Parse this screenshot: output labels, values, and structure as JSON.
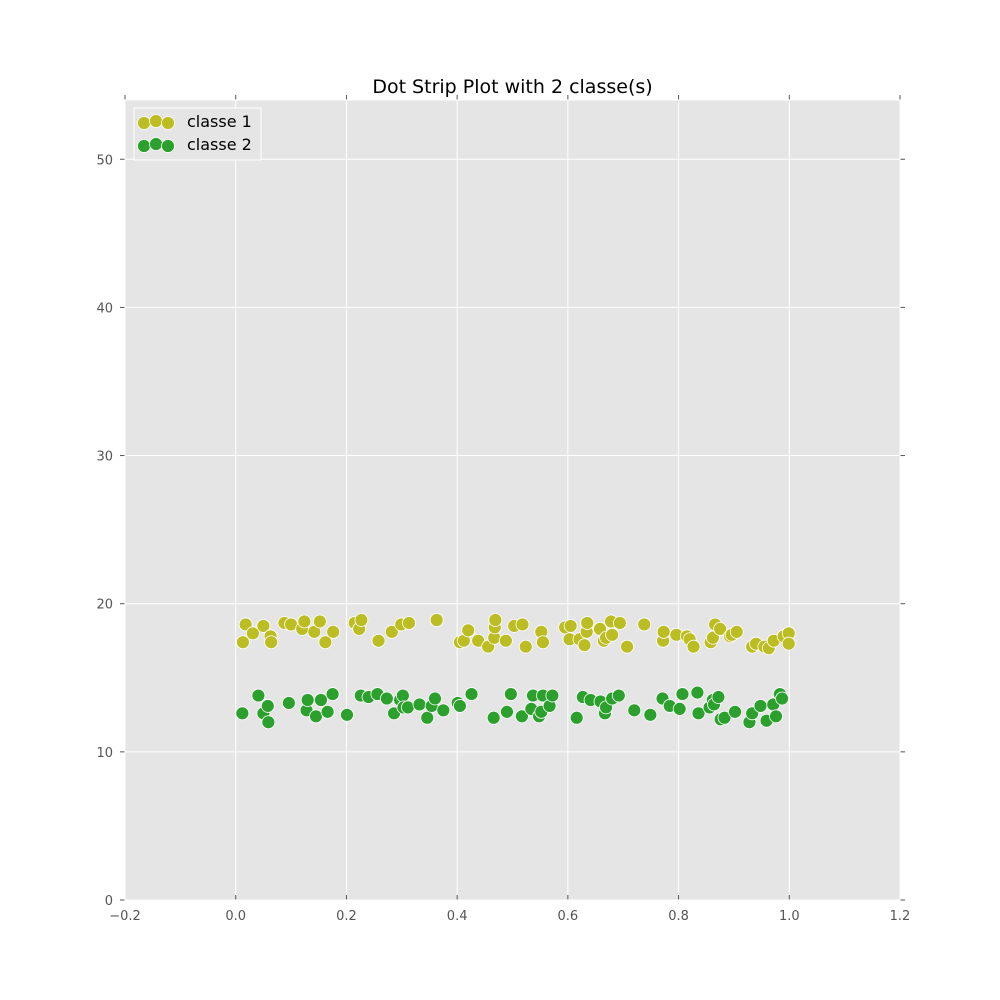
{
  "chart_data": {
    "type": "scatter",
    "title": "Dot Strip Plot with 2 classe(s)",
    "xlabel": "",
    "ylabel": "",
    "xlim": [
      -0.2,
      1.2
    ],
    "ylim": [
      0,
      54
    ],
    "x_ticks": [
      -0.2,
      0.0,
      0.2,
      0.4,
      0.6,
      0.8,
      1.0,
      1.2
    ],
    "x_tick_labels": [
      "−0.2",
      "0.0",
      "0.2",
      "0.4",
      "0.6",
      "0.8",
      "1.0",
      "1.2"
    ],
    "y_ticks": [
      0,
      10,
      20,
      30,
      40,
      50
    ],
    "y_tick_labels": [
      "0",
      "10",
      "20",
      "30",
      "40",
      "50"
    ],
    "grid": true,
    "legend_position": "top-left",
    "background_color": "#e5e5e5",
    "series": [
      {
        "name": "classe 1",
        "color": "#bcbd22",
        "points": [
          [
            0.013,
            17.4
          ],
          [
            0.018,
            18.6
          ],
          [
            0.031,
            18.0
          ],
          [
            0.05,
            18.5
          ],
          [
            0.063,
            17.8
          ],
          [
            0.064,
            17.4
          ],
          [
            0.088,
            18.7
          ],
          [
            0.1,
            18.6
          ],
          [
            0.12,
            18.3
          ],
          [
            0.124,
            18.8
          ],
          [
            0.142,
            18.1
          ],
          [
            0.152,
            18.8
          ],
          [
            0.162,
            17.4
          ],
          [
            0.176,
            18.1
          ],
          [
            0.215,
            18.7
          ],
          [
            0.223,
            18.3
          ],
          [
            0.227,
            18.9
          ],
          [
            0.258,
            17.5
          ],
          [
            0.282,
            18.1
          ],
          [
            0.299,
            18.6
          ],
          [
            0.313,
            18.7
          ],
          [
            0.363,
            18.9
          ],
          [
            0.405,
            17.4
          ],
          [
            0.412,
            17.5
          ],
          [
            0.42,
            18.2
          ],
          [
            0.438,
            17.5
          ],
          [
            0.456,
            17.1
          ],
          [
            0.467,
            17.7
          ],
          [
            0.468,
            18.4
          ],
          [
            0.469,
            18.9
          ],
          [
            0.488,
            17.5
          ],
          [
            0.503,
            18.5
          ],
          [
            0.518,
            18.6
          ],
          [
            0.524,
            17.1
          ],
          [
            0.552,
            18.1
          ],
          [
            0.555,
            17.4
          ],
          [
            0.595,
            18.4
          ],
          [
            0.603,
            17.6
          ],
          [
            0.605,
            18.5
          ],
          [
            0.621,
            17.6
          ],
          [
            0.63,
            17.2
          ],
          [
            0.634,
            18.1
          ],
          [
            0.635,
            18.7
          ],
          [
            0.658,
            18.3
          ],
          [
            0.665,
            17.5
          ],
          [
            0.669,
            17.7
          ],
          [
            0.678,
            18.8
          ],
          [
            0.68,
            17.9
          ],
          [
            0.694,
            18.7
          ],
          [
            0.707,
            17.1
          ],
          [
            0.738,
            18.6
          ],
          [
            0.772,
            17.5
          ],
          [
            0.773,
            18.1
          ],
          [
            0.796,
            17.9
          ],
          [
            0.815,
            17.8
          ],
          [
            0.82,
            17.6
          ],
          [
            0.827,
            17.1
          ],
          [
            0.858,
            17.4
          ],
          [
            0.862,
            17.7
          ],
          [
            0.866,
            18.6
          ],
          [
            0.875,
            18.3
          ],
          [
            0.893,
            17.8
          ],
          [
            0.896,
            17.9
          ],
          [
            0.905,
            18.1
          ],
          [
            0.933,
            17.1
          ],
          [
            0.94,
            17.3
          ],
          [
            0.955,
            17.1
          ],
          [
            0.963,
            17.0
          ],
          [
            0.972,
            17.5
          ],
          [
            0.99,
            17.8
          ],
          [
            0.999,
            18.0
          ],
          [
            0.999,
            17.3
          ]
        ]
      },
      {
        "name": "classe 2",
        "color": "#2ca02c",
        "points": [
          [
            0.012,
            12.6
          ],
          [
            0.041,
            13.8
          ],
          [
            0.05,
            12.6
          ],
          [
            0.058,
            13.1
          ],
          [
            0.059,
            12.0
          ],
          [
            0.096,
            13.3
          ],
          [
            0.128,
            12.8
          ],
          [
            0.13,
            13.5
          ],
          [
            0.145,
            12.4
          ],
          [
            0.154,
            13.5
          ],
          [
            0.166,
            12.7
          ],
          [
            0.175,
            13.9
          ],
          [
            0.201,
            12.5
          ],
          [
            0.226,
            13.8
          ],
          [
            0.24,
            13.7
          ],
          [
            0.256,
            13.9
          ],
          [
            0.273,
            13.6
          ],
          [
            0.286,
            12.6
          ],
          [
            0.297,
            13.5
          ],
          [
            0.302,
            13.8
          ],
          [
            0.303,
            13.0
          ],
          [
            0.311,
            13.0
          ],
          [
            0.332,
            13.2
          ],
          [
            0.346,
            12.3
          ],
          [
            0.354,
            13.1
          ],
          [
            0.36,
            13.6
          ],
          [
            0.375,
            12.8
          ],
          [
            0.401,
            13.3
          ],
          [
            0.405,
            13.1
          ],
          [
            0.426,
            13.9
          ],
          [
            0.466,
            12.3
          ],
          [
            0.49,
            12.7
          ],
          [
            0.497,
            13.9
          ],
          [
            0.517,
            12.4
          ],
          [
            0.534,
            12.9
          ],
          [
            0.537,
            13.8
          ],
          [
            0.548,
            12.4
          ],
          [
            0.552,
            12.7
          ],
          [
            0.555,
            13.8
          ],
          [
            0.567,
            13.1
          ],
          [
            0.572,
            13.8
          ],
          [
            0.616,
            12.3
          ],
          [
            0.627,
            13.7
          ],
          [
            0.641,
            13.5
          ],
          [
            0.659,
            13.4
          ],
          [
            0.667,
            12.6
          ],
          [
            0.669,
            13.0
          ],
          [
            0.68,
            13.6
          ],
          [
            0.692,
            13.8
          ],
          [
            0.72,
            12.8
          ],
          [
            0.749,
            12.5
          ],
          [
            0.771,
            13.6
          ],
          [
            0.784,
            13.1
          ],
          [
            0.802,
            12.9
          ],
          [
            0.807,
            13.9
          ],
          [
            0.834,
            14.0
          ],
          [
            0.836,
            12.6
          ],
          [
            0.856,
            13.0
          ],
          [
            0.862,
            13.5
          ],
          [
            0.864,
            13.2
          ],
          [
            0.872,
            13.7
          ],
          [
            0.876,
            12.2
          ],
          [
            0.883,
            12.3
          ],
          [
            0.902,
            12.7
          ],
          [
            0.928,
            12.0
          ],
          [
            0.933,
            12.6
          ],
          [
            0.948,
            13.1
          ],
          [
            0.959,
            12.1
          ],
          [
            0.971,
            13.2
          ],
          [
            0.976,
            12.4
          ],
          [
            0.983,
            13.9
          ],
          [
            0.987,
            13.6
          ]
        ]
      }
    ]
  }
}
